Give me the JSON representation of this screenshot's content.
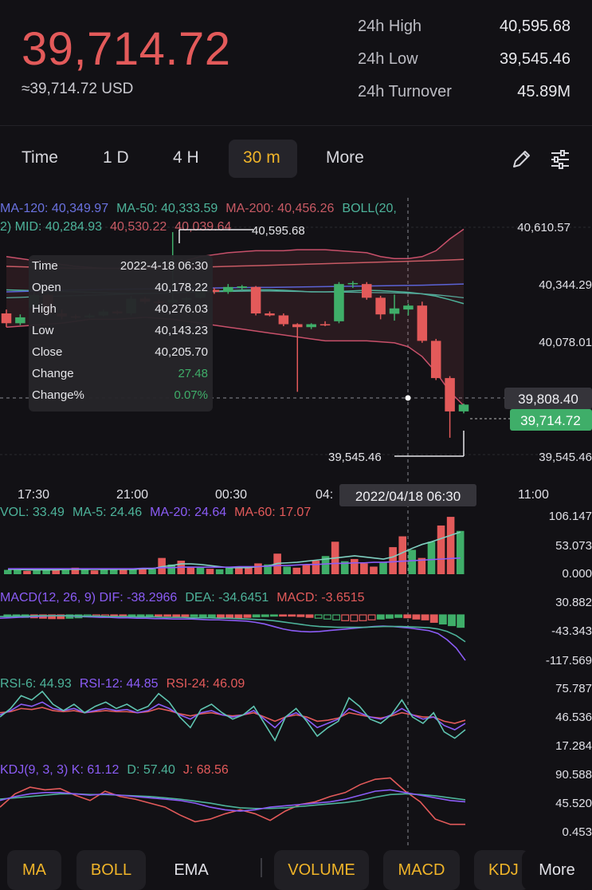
{
  "header": {
    "price": "39,714.72",
    "price_usd": "≈39,714.72 USD",
    "stats": [
      {
        "label": "24h High",
        "value": "40,595.68"
      },
      {
        "label": "24h Low",
        "value": "39,545.46"
      },
      {
        "label": "24h Turnover",
        "value": "45.89M"
      }
    ]
  },
  "timeframes": [
    {
      "label": "Time",
      "active": false
    },
    {
      "label": "1 D",
      "active": false
    },
    {
      "label": "4 H",
      "active": false
    },
    {
      "label": "30 m",
      "active": true
    },
    {
      "label": "More",
      "active": false
    }
  ],
  "toolbar": {
    "draw_icon": "pencil-icon",
    "settings_icon": "sliders-icon"
  },
  "colors": {
    "up": "#3fae69",
    "down": "#e35a5a",
    "accent": "#f0b429",
    "ma120": "#5b63d6",
    "ma50": "#4db39a",
    "ma200": "#c85a64"
  },
  "indicators": {
    "ma_legend": [
      {
        "text": "MA-120: 40,349.97",
        "color": "#6a72e0"
      },
      {
        "text": "MA-50: 40,333.59",
        "color": "#4db39a"
      },
      {
        "text": "MA-200: 40,456.26",
        "color": "#c85a64"
      },
      {
        "text": "BOLL(20,",
        "color": "#4db39a"
      }
    ],
    "boll_legend": [
      {
        "text": "2) MID: 40,284.93",
        "color": "#4db39a"
      },
      {
        "text": "40,530.22",
        "color": "#c85a64"
      },
      {
        "text": "40,039.64",
        "color": "#c85a64"
      }
    ],
    "vol_legend": [
      {
        "text": "VOL: 33.49",
        "color": "#4db39a"
      },
      {
        "text": "MA-5: 24.46",
        "color": "#4db39a"
      },
      {
        "text": "MA-20: 24.64",
        "color": "#8b5cf6"
      },
      {
        "text": "MA-60: 17.07",
        "color": "#e35a5a"
      }
    ],
    "macd_legend": [
      {
        "text": "MACD(12, 26, 9) DIF: -38.2966",
        "color": "#8b5cf6"
      },
      {
        "text": "DEA: -34.6451",
        "color": "#4db39a"
      },
      {
        "text": "MACD: -3.6515",
        "color": "#e35a5a"
      }
    ],
    "rsi_legend": [
      {
        "text": "RSI-6: 44.93",
        "color": "#4db39a"
      },
      {
        "text": "RSI-12: 44.85",
        "color": "#8b5cf6"
      },
      {
        "text": "RSI-24: 46.09",
        "color": "#e35a5a"
      }
    ],
    "kdj_legend": [
      {
        "text": "KDJ(9, 3, 3) K: 61.12",
        "color": "#8b5cf6"
      },
      {
        "text": "D: 57.40",
        "color": "#4db39a"
      },
      {
        "text": "J: 68.56",
        "color": "#e35a5a"
      }
    ]
  },
  "tooltip": {
    "rows": [
      {
        "label": "Time",
        "value": "2022-4-18 06:30"
      },
      {
        "label": "Open",
        "value": "40,178.22"
      },
      {
        "label": "High",
        "value": "40,276.03"
      },
      {
        "label": "Low",
        "value": "40,143.23"
      },
      {
        "label": "Close",
        "value": "40,205.70"
      },
      {
        "label": "Change",
        "value": "27.48"
      },
      {
        "label": "Change%",
        "value": "0.07%"
      }
    ]
  },
  "crosshair": {
    "price_label": "39,808.40",
    "date_label": "2022/04/18 06:30"
  },
  "last_price_label": "39,714.72",
  "high_marker": "40,595.68",
  "low_marker": "39,545.46",
  "bottom_tabs": [
    {
      "label": "MA",
      "active": true
    },
    {
      "label": "BOLL",
      "active": true
    },
    {
      "label": "EMA",
      "active": false
    },
    {
      "label": "VOLUME",
      "active": true
    },
    {
      "label": "MACD",
      "active": true
    },
    {
      "label": "KDJ",
      "active": true
    },
    {
      "label": "More",
      "active": false
    }
  ],
  "chart_data": {
    "type": "candlestick",
    "interval": "30m",
    "y_axis_labels": [
      "40,610.57",
      "40,344.29",
      "40,078.01",
      "39,545.46"
    ],
    "ylim": [
      39480,
      40640
    ],
    "x_axis_labels": [
      "17:30",
      "21:00",
      "00:30",
      "04:",
      "11:00"
    ],
    "candles": [
      {
        "o": 40180,
        "h": 40200,
        "l": 40110,
        "c": 40130
      },
      {
        "o": 40130,
        "h": 40175,
        "l": 40120,
        "c": 40160
      },
      {
        "o": 40210,
        "h": 40290,
        "l": 40200,
        "c": 40275
      },
      {
        "o": 40275,
        "h": 40280,
        "l": 40170,
        "c": 40180
      },
      {
        "o": 40180,
        "h": 40200,
        "l": 40150,
        "c": 40165
      },
      {
        "o": 40165,
        "h": 40175,
        "l": 40150,
        "c": 40160
      },
      {
        "o": 40160,
        "h": 40180,
        "l": 40155,
        "c": 40170
      },
      {
        "o": 40170,
        "h": 40200,
        "l": 40165,
        "c": 40190
      },
      {
        "o": 40190,
        "h": 40195,
        "l": 40175,
        "c": 40180
      },
      {
        "o": 40180,
        "h": 40270,
        "l": 40170,
        "c": 40255
      },
      {
        "o": 40255,
        "h": 40265,
        "l": 40230,
        "c": 40240
      },
      {
        "o": 40240,
        "h": 40250,
        "l": 40225,
        "c": 40235
      },
      {
        "o": 40235,
        "h": 40595,
        "l": 40230,
        "c": 40250
      },
      {
        "o": 40250,
        "h": 40265,
        "l": 40240,
        "c": 40258
      },
      {
        "o": 40260,
        "h": 40320,
        "l": 40255,
        "c": 40300
      },
      {
        "o": 40300,
        "h": 40310,
        "l": 40280,
        "c": 40290
      },
      {
        "o": 40290,
        "h": 40330,
        "l": 40280,
        "c": 40315
      },
      {
        "o": 40310,
        "h": 40325,
        "l": 40300,
        "c": 40318
      },
      {
        "o": 40315,
        "h": 40320,
        "l": 40170,
        "c": 40180
      },
      {
        "o": 40180,
        "h": 40190,
        "l": 40165,
        "c": 40170
      },
      {
        "o": 40170,
        "h": 40180,
        "l": 40115,
        "c": 40125
      },
      {
        "o": 40125,
        "h": 40130,
        "l": 39780,
        "c": 40110
      },
      {
        "o": 40110,
        "h": 40130,
        "l": 40100,
        "c": 40125
      },
      {
        "o": 40125,
        "h": 40140,
        "l": 40115,
        "c": 40120
      },
      {
        "o": 40140,
        "h": 40340,
        "l": 40130,
        "c": 40330
      },
      {
        "o": 40330,
        "h": 40345,
        "l": 40310,
        "c": 40335
      },
      {
        "o": 40330,
        "h": 40340,
        "l": 40250,
        "c": 40260
      },
      {
        "o": 40260,
        "h": 40270,
        "l": 40150,
        "c": 40175
      },
      {
        "o": 40178.22,
        "h": 40276.03,
        "l": 40143.23,
        "c": 40205.7
      },
      {
        "o": 40200,
        "h": 40230,
        "l": 40170,
        "c": 40220
      },
      {
        "o": 40220,
        "h": 40240,
        "l": 40030,
        "c": 40040
      },
      {
        "o": 40040,
        "h": 40050,
        "l": 39840,
        "c": 39850
      },
      {
        "o": 39850,
        "h": 39860,
        "l": 39545.46,
        "c": 39680
      },
      {
        "o": 39680,
        "h": 39720,
        "l": 39670,
        "c": 39714.72
      }
    ],
    "ma120": [
      40290,
      40292,
      40294,
      40296,
      40298,
      40300,
      40301,
      40302,
      40303,
      40304,
      40305,
      40306,
      40307,
      40308,
      40309,
      40310,
      40311,
      40312,
      40313,
      40313,
      40314,
      40315,
      40316,
      40317,
      40318,
      40319,
      40320,
      40321,
      40322,
      40323,
      40324,
      40326,
      40328,
      40330
    ],
    "ma50": [
      40260,
      40262,
      40265,
      40267,
      40269,
      40271,
      40273,
      40275,
      40277,
      40279,
      40281,
      40283,
      40285,
      40287,
      40289,
      40291,
      40292,
      40293,
      40294,
      40294,
      40293,
      40292,
      40291,
      40290,
      40289,
      40288,
      40287,
      40286,
      40285,
      40283,
      40280,
      40275,
      40268,
      40260
    ],
    "ma200": [
      40420,
      40418,
      40416,
      40414,
      40412,
      40410,
      40410,
      40410,
      40410,
      40410,
      40410,
      40410,
      40412,
      40414,
      40416,
      40418,
      40420,
      40422,
      40424,
      40426,
      40428,
      40430,
      40432,
      40434,
      40436,
      40438,
      40440,
      40442,
      40444,
      40446,
      40448,
      40450,
      40453,
      40456
    ],
    "boll_upper": [
      40470,
      40460,
      40450,
      40440,
      40430,
      40420,
      40415,
      40410,
      40410,
      40410,
      40415,
      40420,
      40430,
      40450,
      40470,
      40480,
      40490,
      40495,
      40500,
      40500,
      40500,
      40505,
      40505,
      40505,
      40500,
      40495,
      40490,
      40470,
      40460,
      40460,
      40470,
      40500,
      40560,
      40610
    ],
    "boll_mid": [
      40300,
      40298,
      40296,
      40294,
      40292,
      40290,
      40288,
      40285,
      40283,
      40282,
      40282,
      40283,
      40285,
      40288,
      40290,
      40293,
      40296,
      40299,
      40300,
      40300,
      40298,
      40294,
      40290,
      40290,
      40292,
      40295,
      40298,
      40296,
      40292,
      40288,
      40280,
      40268,
      40250,
      40230
    ],
    "boll_lower": [
      40110,
      40115,
      40120,
      40125,
      40130,
      40140,
      40150,
      40150,
      40150,
      40155,
      40160,
      40155,
      40150,
      40140,
      40130,
      40120,
      40110,
      40100,
      40090,
      40080,
      40070,
      40060,
      40050,
      40040,
      40040,
      40040,
      40040,
      40035,
      40030,
      40010,
      39960,
      39880,
      39780,
      39710
    ],
    "volume": {
      "labels": [
        "106.147",
        "53.073",
        "0.000"
      ],
      "max": 106.147,
      "values": [
        8,
        10,
        6,
        7,
        9,
        8,
        10,
        12,
        9,
        7,
        8,
        10,
        8,
        9,
        11,
        10,
        30,
        18,
        25,
        14,
        12,
        10,
        9,
        13,
        14,
        12,
        20,
        18,
        38,
        14,
        12,
        18,
        25,
        33.49,
        60,
        24,
        28,
        20,
        14,
        22,
        50,
        70,
        45,
        30,
        60,
        90,
        106,
        80
      ],
      "ma5": [
        9,
        9,
        8,
        8,
        8,
        8,
        9,
        9,
        9,
        9,
        9,
        9,
        9,
        9,
        10,
        10,
        14,
        16,
        19,
        19,
        18,
        16,
        14,
        12,
        12,
        12,
        14,
        15,
        20,
        21,
        22,
        24,
        26,
        28,
        30,
        32,
        34,
        32,
        30,
        28,
        32,
        40,
        48,
        55,
        60,
        66,
        72,
        78
      ],
      "ma20": [
        10,
        10,
        10,
        10,
        10,
        10,
        10,
        10,
        10,
        10,
        10,
        10,
        10,
        10,
        11,
        11,
        12,
        12,
        13,
        13,
        13,
        13,
        13,
        13,
        14,
        14,
        14,
        15,
        16,
        16,
        17,
        18,
        18,
        19,
        20,
        20,
        21,
        21,
        22,
        22,
        23,
        24,
        25,
        26,
        27,
        28,
        29,
        30
      ]
    },
    "macd": {
      "labels": [
        "30.882",
        "-43.343",
        "-117.569"
      ],
      "ylim": [
        -117.569,
        30.882
      ],
      "hist": [
        -4,
        -5,
        -6,
        -7,
        -8,
        -9,
        -9,
        -8,
        -7,
        -5,
        -4,
        -4,
        -3,
        -2,
        -2,
        -2,
        -3,
        -3,
        -3,
        -4,
        -4,
        -4,
        -5,
        -5,
        -6,
        -7,
        -8,
        -6,
        -5,
        -4,
        -3,
        -2,
        -3,
        -4,
        -6,
        -8,
        -10,
        -12,
        -14,
        -15,
        -14,
        -12,
        -10,
        -8,
        -6,
        -7,
        -10,
        -12,
        -18,
        -22,
        -26,
        -30
      ],
      "dif": [
        -8,
        -7,
        -6,
        -5,
        -4,
        -3,
        -2,
        -2,
        -3,
        -4,
        -5,
        -6,
        -6,
        -7,
        -7,
        -8,
        -8,
        -9,
        -9,
        -10,
        -10,
        -10,
        -11,
        -12,
        -12,
        -13,
        -14,
        -15,
        -18,
        -22,
        -28,
        -34,
        -38,
        -40,
        -41,
        -40,
        -38,
        -36,
        -34,
        -32,
        -30,
        -28,
        -27,
        -28,
        -30,
        -32,
        -35,
        -38,
        -45,
        -60,
        -80,
        -110
      ],
      "dea": [
        -4,
        -4,
        -3,
        -3,
        -2,
        -2,
        -2,
        -2,
        -2,
        -3,
        -3,
        -3,
        -4,
        -4,
        -4,
        -5,
        -5,
        -5,
        -6,
        -6,
        -6,
        -7,
        -7,
        -7,
        -8,
        -8,
        -9,
        -10,
        -11,
        -12,
        -14,
        -17,
        -20,
        -23,
        -26,
        -28,
        -29,
        -30,
        -30,
        -30,
        -30,
        -29,
        -28,
        -28,
        -28,
        -29,
        -30,
        -31,
        -34,
        -40,
        -50,
        -65
      ]
    },
    "rsi": {
      "labels": [
        "75.787",
        "46.536",
        "17.284"
      ],
      "ylim": [
        17.284,
        75.787
      ],
      "rsi6": [
        48,
        56,
        68,
        64,
        72,
        60,
        54,
        60,
        52,
        58,
        62,
        56,
        60,
        54,
        58,
        70,
        62,
        48,
        38,
        55,
        60,
        52,
        46,
        50,
        58,
        42,
        26,
        48,
        56,
        44,
        30,
        38,
        44,
        66,
        58,
        46,
        42,
        50,
        64,
        48,
        42,
        52,
        34,
        28,
        36
      ],
      "rsi12": [
        50,
        54,
        60,
        58,
        62,
        56,
        54,
        56,
        52,
        54,
        56,
        54,
        55,
        52,
        54,
        60,
        56,
        50,
        46,
        52,
        54,
        50,
        48,
        50,
        54,
        46,
        38,
        48,
        52,
        46,
        38,
        42,
        46,
        56,
        52,
        48,
        46,
        50,
        56,
        50,
        46,
        48,
        40,
        36,
        42
      ],
      "rsi24": [
        52,
        53,
        56,
        55,
        57,
        54,
        53,
        54,
        52,
        53,
        54,
        53,
        53,
        52,
        53,
        56,
        54,
        51,
        49,
        51,
        52,
        50,
        49,
        50,
        52,
        48,
        44,
        48,
        50,
        48,
        44,
        45,
        47,
        52,
        50,
        48,
        47,
        49,
        52,
        50,
        48,
        48,
        44,
        42,
        45
      ]
    },
    "kdj": {
      "labels": [
        "90.588",
        "45.520",
        "0.453"
      ],
      "ylim": [
        0.453,
        90.588
      ],
      "k": [
        50,
        56,
        60,
        62,
        62,
        60,
        58,
        60,
        58,
        56,
        54,
        52,
        50,
        46,
        40,
        36,
        34,
        36,
        40,
        42,
        44,
        46,
        48,
        52,
        58,
        64,
        66,
        62,
        58,
        54,
        50,
        48
      ],
      "d": [
        52,
        54,
        56,
        58,
        60,
        60,
        59,
        59,
        58,
        57,
        56,
        54,
        52,
        49,
        46,
        42,
        39,
        38,
        38,
        39,
        41,
        43,
        45,
        47,
        50,
        55,
        59,
        60,
        59,
        57,
        54,
        51
      ],
      "j": [
        40,
        60,
        70,
        66,
        68,
        58,
        50,
        64,
        56,
        52,
        46,
        40,
        28,
        18,
        22,
        30,
        36,
        30,
        20,
        34,
        44,
        48,
        56,
        62,
        74,
        82,
        84,
        64,
        48,
        22,
        14,
        14
      ]
    }
  }
}
